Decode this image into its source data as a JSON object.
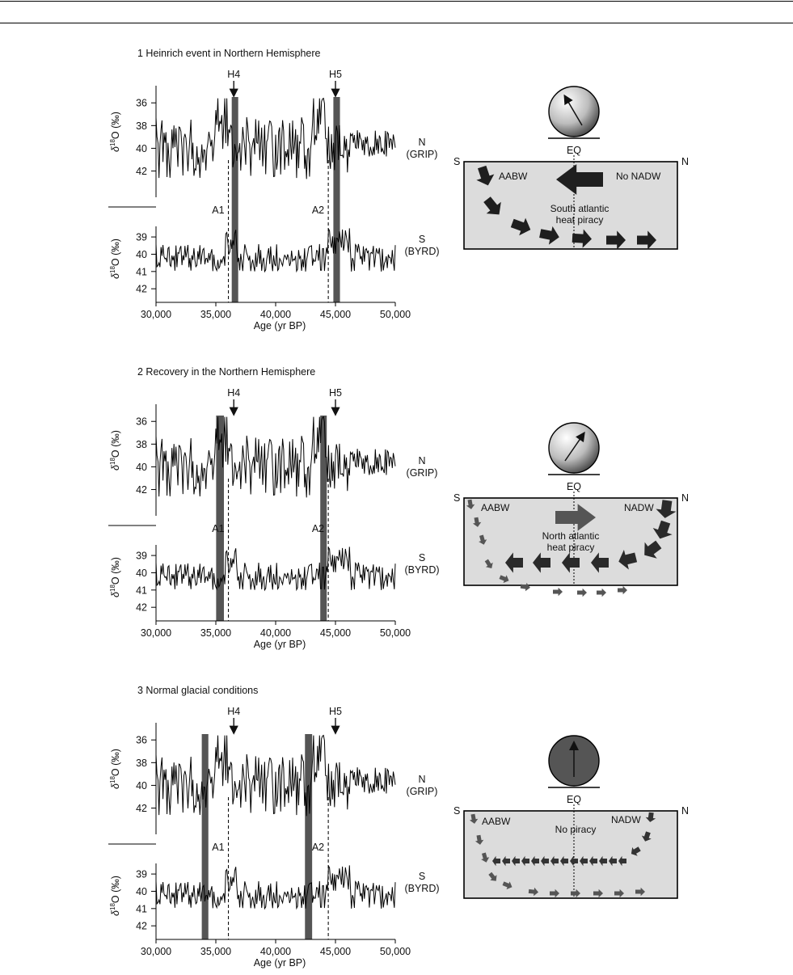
{
  "chart_data": [
    {
      "type": "line",
      "title": "1 Heinrich event in Northern Hemisphere",
      "xlabel": "Age (yr BP)",
      "xlim": [
        30000,
        50000
      ],
      "xticks": [
        "30,000",
        "35,000",
        "40,000",
        "45,000",
        "50,000"
      ],
      "events": [
        {
          "label": "H4",
          "x": 36500
        },
        {
          "label": "H5",
          "x": 45000
        }
      ],
      "shaded_bands": [
        {
          "x": 36600,
          "width_yr": 500
        },
        {
          "x": 45100,
          "width_yr": 550
        }
      ],
      "dashed_lines": [
        {
          "label": "A1",
          "x": 36050
        },
        {
          "label": "A2",
          "x": 44400
        }
      ],
      "series": [
        {
          "name": "N\n(GRIP)",
          "ylabel": "δ18O (‰)",
          "yticks": [
            36,
            38,
            40,
            42
          ],
          "ylim": [
            35.2,
            43.6
          ]
        },
        {
          "name": "S\n(BYRD)",
          "ylabel": "δ18O (‰)",
          "yticks": [
            39,
            40,
            41,
            42
          ],
          "ylim": [
            38.2,
            42.6
          ]
        }
      ]
    },
    {
      "type": "line",
      "title": "2 Recovery in the Northern Hemisphere",
      "xlabel": "Age (yr BP)",
      "xlim": [
        30000,
        50000
      ],
      "xticks": [
        "30,000",
        "35,000",
        "40,000",
        "45,000",
        "50,000"
      ],
      "events": [
        {
          "label": "H4",
          "x": 36500
        },
        {
          "label": "H5",
          "x": 45000
        }
      ],
      "shaded_bands": [
        {
          "x": 35350,
          "width_yr": 650
        },
        {
          "x": 44000,
          "width_yr": 500
        }
      ],
      "dashed_lines": [
        {
          "label": "A1",
          "x": 36050
        },
        {
          "label": "A2",
          "x": 44400
        }
      ],
      "series": [
        {
          "name": "N\n(GRIP)",
          "ylabel": "δ18O (‰)",
          "yticks": [
            36,
            38,
            40,
            42
          ],
          "ylim": [
            35.2,
            43.6
          ]
        },
        {
          "name": "S\n(BYRD)",
          "ylabel": "δ18O (‰)",
          "yticks": [
            39,
            40,
            41,
            42
          ],
          "ylim": [
            38.2,
            42.6
          ]
        }
      ]
    },
    {
      "type": "line",
      "title": "3 Normal glacial conditions",
      "xlabel": "Age (yr BP)",
      "xlim": [
        30000,
        50000
      ],
      "xticks": [
        "30,000",
        "35,000",
        "40,000",
        "45,000",
        "50,000"
      ],
      "events": [
        {
          "label": "H4",
          "x": 36500
        },
        {
          "label": "H5",
          "x": 45000
        }
      ],
      "shaded_bands": [
        {
          "x": 34100,
          "width_yr": 550
        },
        {
          "x": 42750,
          "width_yr": 600
        }
      ],
      "dashed_lines": [
        {
          "label": "A1",
          "x": 36050
        },
        {
          "label": "A2",
          "x": 44400
        }
      ],
      "series": [
        {
          "name": "N\n(GRIP)",
          "ylabel": "δ18O (‰)",
          "yticks": [
            36,
            38,
            40,
            42
          ],
          "ylim": [
            35.2,
            43.6
          ]
        },
        {
          "name": "S\n(BYRD)",
          "ylabel": "δ18O (‰)",
          "yticks": [
            39,
            40,
            41,
            42
          ],
          "ylim": [
            38.2,
            42.6
          ]
        }
      ]
    }
  ],
  "diagrams": [
    {
      "ball_arrow": "tilted-left",
      "ball_style": "gradient",
      "labels": {
        "S": "S",
        "N": "N",
        "EQ": "EQ",
        "left": "AABW",
        "right": "No NADW",
        "center": "South atlantic\nheat piracy"
      },
      "arrow_color": "#1f1f1f"
    },
    {
      "ball_arrow": "tilted-right",
      "ball_style": "gradient",
      "labels": {
        "S": "S",
        "N": "N",
        "EQ": "EQ",
        "left": "AABW",
        "right": "NADW",
        "center": "North atlantic\nheat piracy"
      },
      "arrow_color": "#2a2a2a",
      "small_arrow_color": "#555555"
    },
    {
      "ball_arrow": "upright",
      "ball_style": "dark",
      "labels": {
        "S": "S",
        "N": "N",
        "EQ": "EQ",
        "left": "AABW",
        "right": "NADW",
        "center": "No piracy"
      },
      "arrow_color": "#333333",
      "small_arrow_color": "#555555"
    }
  ],
  "colors": {
    "panel_fill": "#dcdcdc",
    "band": "#555555",
    "line": "#000000"
  }
}
